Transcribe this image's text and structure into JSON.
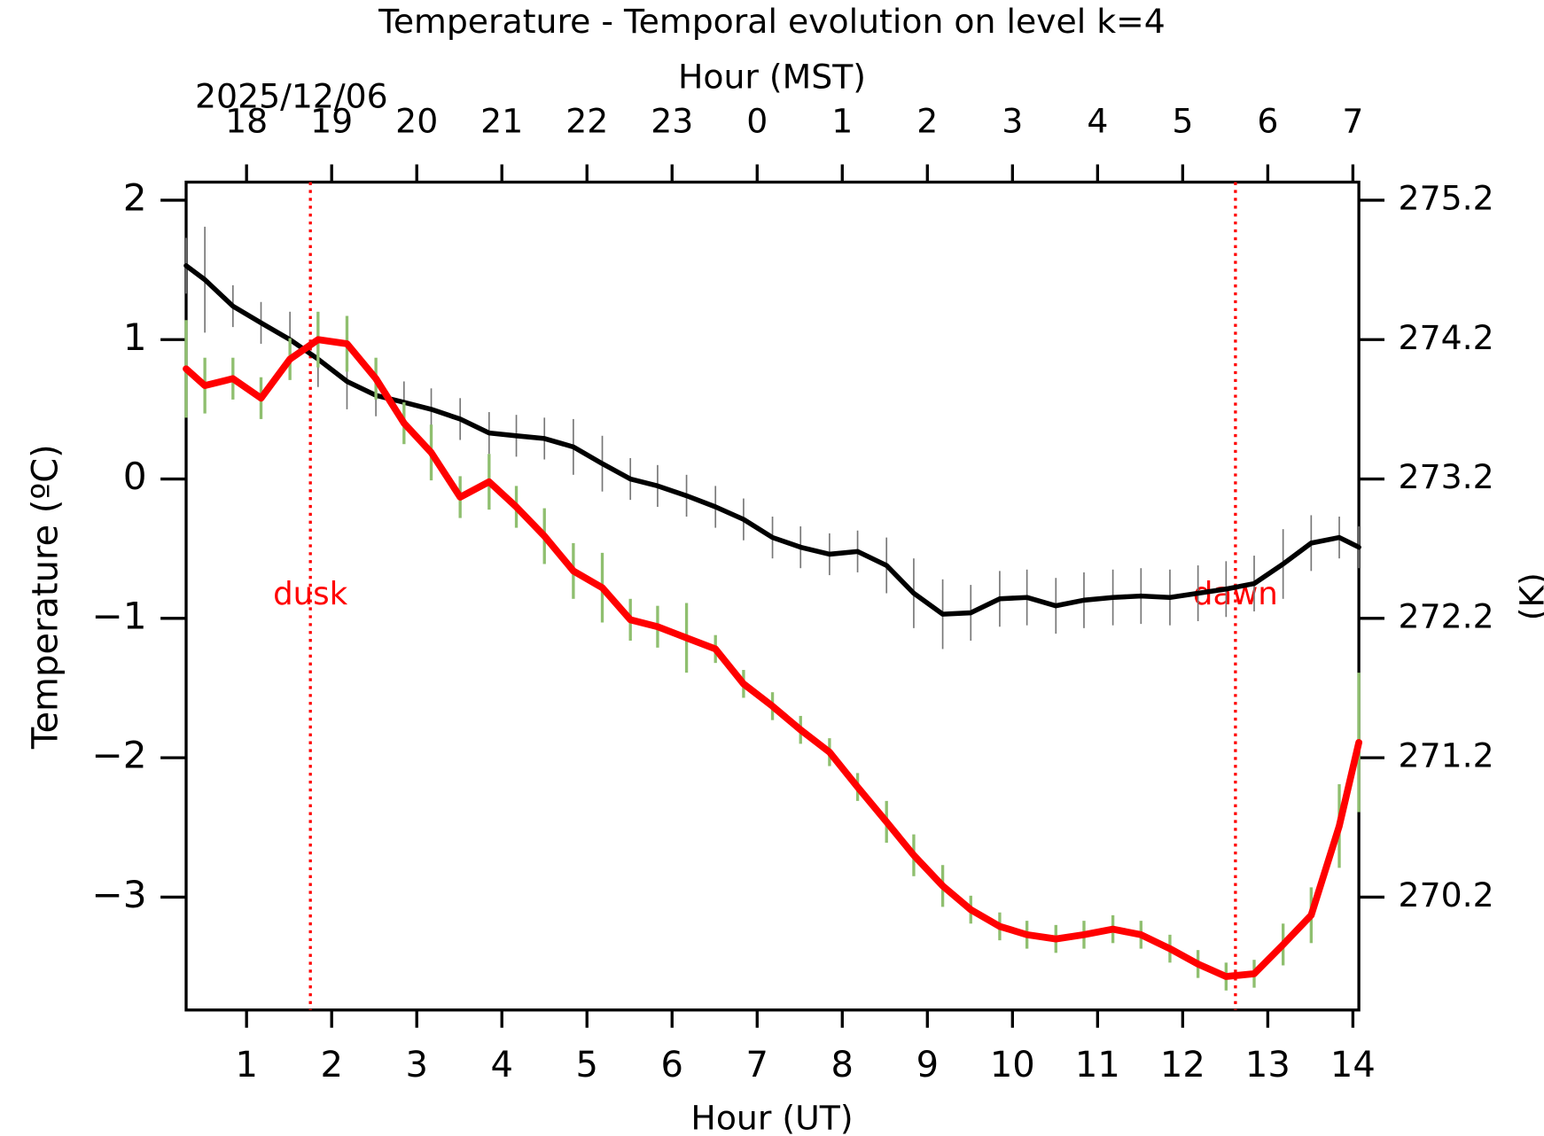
{
  "chart_data": {
    "type": "line",
    "title": "Temperature - Temporal evolution on level k=4",
    "x_title": "Hour (UT)",
    "x2_title": "Hour (MST)",
    "x2_date": "2025/12/06",
    "y_title": "Temperature (ºC)",
    "y2_title": "(K)",
    "xlim": [
      0.29,
      14.07
    ],
    "xticks": [
      1,
      2,
      3,
      4,
      5,
      6,
      7,
      8,
      9,
      10,
      11,
      12,
      13,
      14
    ],
    "x2ticks": [
      {
        "value": 1,
        "label": "18"
      },
      {
        "value": 2,
        "label": "19"
      },
      {
        "value": 3,
        "label": "20"
      },
      {
        "value": 4,
        "label": "21"
      },
      {
        "value": 5,
        "label": "22"
      },
      {
        "value": 6,
        "label": "23"
      },
      {
        "value": 7,
        "label": "0"
      },
      {
        "value": 8,
        "label": "1"
      },
      {
        "value": 9,
        "label": "2"
      },
      {
        "value": 10,
        "label": "3"
      },
      {
        "value": 11,
        "label": "4"
      },
      {
        "value": 12,
        "label": "5"
      },
      {
        "value": 13,
        "label": "6"
      },
      {
        "value": 14,
        "label": "7"
      }
    ],
    "ylim": [
      -3.81,
      2.13
    ],
    "yticks": [
      {
        "value": -3,
        "label": "−3"
      },
      {
        "value": -2,
        "label": "−2"
      },
      {
        "value": -1,
        "label": "−1"
      },
      0,
      1,
      2
    ],
    "y2lim": [
      269.39,
      275.33
    ],
    "y2ticks": [
      270.2,
      271.2,
      272.2,
      273.2,
      274.2,
      275.2
    ],
    "x": [
      0.29,
      0.51,
      0.84,
      1.17,
      1.51,
      1.84,
      2.18,
      2.52,
      2.85,
      3.17,
      3.51,
      3.85,
      4.17,
      4.5,
      4.84,
      5.18,
      5.51,
      5.83,
      6.17,
      6.51,
      6.84,
      7.18,
      7.51,
      7.85,
      8.18,
      8.52,
      8.84,
      9.18,
      9.51,
      9.85,
      10.17,
      10.51,
      10.84,
      11.18,
      11.51,
      11.85,
      12.18,
      12.51,
      12.84,
      13.18,
      13.51,
      13.84,
      14.07
    ],
    "series": [
      {
        "color": "#000000",
        "error_color": "#777777",
        "values": [
          1.53,
          1.43,
          1.24,
          1.12,
          1.0,
          0.86,
          0.7,
          0.6,
          0.55,
          0.5,
          0.43,
          0.33,
          0.31,
          0.29,
          0.23,
          0.11,
          0.0,
          -0.05,
          -0.12,
          -0.2,
          -0.29,
          -0.42,
          -0.49,
          -0.54,
          -0.52,
          -0.62,
          -0.82,
          -0.97,
          -0.96,
          -0.86,
          -0.85,
          -0.91,
          -0.87,
          -0.85,
          -0.84,
          -0.85,
          -0.82,
          -0.79,
          -0.75,
          -0.61,
          -0.46,
          -0.42,
          -0.49
        ],
        "errors": [
          0.2,
          0.38,
          0.15,
          0.15,
          0.2,
          0.2,
          0.2,
          0.15,
          0.15,
          0.15,
          0.15,
          0.15,
          0.15,
          0.15,
          0.2,
          0.2,
          0.15,
          0.15,
          0.15,
          0.15,
          0.15,
          0.15,
          0.15,
          0.15,
          0.15,
          0.2,
          0.25,
          0.25,
          0.2,
          0.2,
          0.2,
          0.2,
          0.2,
          0.2,
          0.2,
          0.2,
          0.2,
          0.2,
          0.2,
          0.25,
          0.2,
          0.15,
          0.15
        ]
      },
      {
        "color": "#ff0000",
        "error_color": "#8fbf6f",
        "values": [
          0.79,
          0.67,
          0.72,
          0.58,
          0.86,
          1.0,
          0.97,
          0.72,
          0.4,
          0.19,
          -0.13,
          -0.02,
          -0.2,
          -0.41,
          -0.66,
          -0.78,
          -1.01,
          -1.06,
          -1.14,
          -1.22,
          -1.47,
          -1.63,
          -1.8,
          -1.96,
          -2.21,
          -2.46,
          -2.7,
          -2.92,
          -3.09,
          -3.21,
          -3.27,
          -3.3,
          -3.27,
          -3.23,
          -3.27,
          -3.37,
          -3.48,
          -3.57,
          -3.55,
          -3.34,
          -3.13,
          -2.49,
          -1.89
        ],
        "errors": [
          0.35,
          0.2,
          0.15,
          0.15,
          0.15,
          0.2,
          0.2,
          0.15,
          0.15,
          0.2,
          0.15,
          0.2,
          0.15,
          0.2,
          0.2,
          0.25,
          0.15,
          0.15,
          0.25,
          0.1,
          0.1,
          0.1,
          0.1,
          0.1,
          0.1,
          0.15,
          0.15,
          0.15,
          0.1,
          0.1,
          0.1,
          0.1,
          0.1,
          0.1,
          0.1,
          0.1,
          0.1,
          0.1,
          0.1,
          0.15,
          0.2,
          0.3,
          0.5
        ]
      }
    ],
    "annotations": [
      {
        "label": "dusk",
        "x": 1.75,
        "color": "#ff0000"
      },
      {
        "label": "dawn",
        "x": 12.62,
        "color": "#ff0000"
      }
    ]
  }
}
